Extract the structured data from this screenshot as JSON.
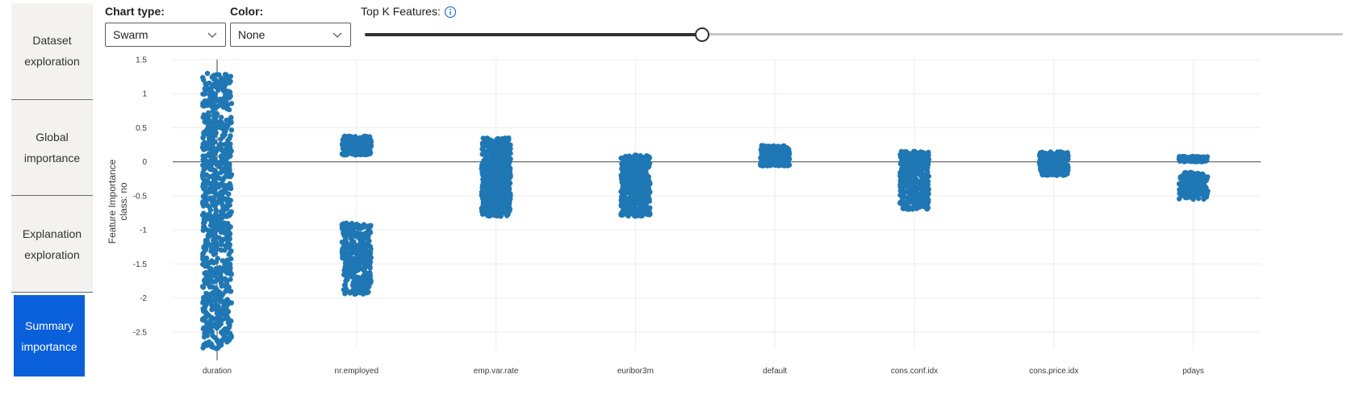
{
  "sidebar": {
    "items": [
      {
        "line1": "Dataset",
        "line2": "exploration",
        "active": false
      },
      {
        "line1": "Global",
        "line2": "importance",
        "active": false
      },
      {
        "line1": "Explanation",
        "line2": "exploration",
        "active": false
      },
      {
        "line1": "Summary",
        "line2": "importance",
        "active": true
      }
    ]
  },
  "controls": {
    "chart_type": {
      "label": "Chart type:",
      "value": "Swarm"
    },
    "color": {
      "label": "Color:",
      "value": "None"
    },
    "topk": {
      "label": "Top K Features:",
      "info_icon": "info-icon",
      "value_fraction": 0.345
    }
  },
  "colors": {
    "accent": "#0a5fdb",
    "points": "#1f77b4"
  },
  "chart_data": {
    "type": "scatter",
    "subtype": "swarm",
    "ylabel_line1": "Feature Importance",
    "ylabel_line2": "class:  no",
    "ylim": [
      -2.75,
      1.5
    ],
    "yticks": [
      "1.5",
      "1",
      "0.5",
      "0",
      "-0.5",
      "-1",
      "-1.5",
      "-2",
      "-2.5"
    ],
    "ytick_values": [
      1.5,
      1,
      0.5,
      0,
      -0.5,
      -1,
      -1.5,
      -2,
      -2.5
    ],
    "grid": true,
    "categories": [
      "duration",
      "nr.employed",
      "emp.var.rate",
      "euribor3m",
      "default",
      "cons.conf.idx",
      "cons.price.idx",
      "pdays"
    ],
    "series": [
      {
        "feature": "duration",
        "clusters": [
          {
            "min": -2.75,
            "max": 1.3,
            "n": 900
          }
        ]
      },
      {
        "feature": "nr.employed",
        "clusters": [
          {
            "min": 0.1,
            "max": 0.38,
            "n": 250
          },
          {
            "min": -1.95,
            "max": -0.9,
            "n": 350
          }
        ]
      },
      {
        "feature": "emp.var.rate",
        "clusters": [
          {
            "min": -0.8,
            "max": 0.35,
            "n": 600
          }
        ]
      },
      {
        "feature": "euribor3m",
        "clusters": [
          {
            "min": -0.8,
            "max": 0.1,
            "n": 450
          }
        ]
      },
      {
        "feature": "default",
        "clusters": [
          {
            "min": -0.06,
            "max": 0.24,
            "n": 220
          }
        ]
      },
      {
        "feature": "cons.conf.idx",
        "clusters": [
          {
            "min": -0.7,
            "max": 0.16,
            "n": 380
          }
        ]
      },
      {
        "feature": "cons.price.idx",
        "clusters": [
          {
            "min": -0.2,
            "max": 0.15,
            "n": 260
          }
        ]
      },
      {
        "feature": "pdays",
        "clusters": [
          {
            "min": 0.0,
            "max": 0.08,
            "n": 120
          },
          {
            "min": -0.55,
            "max": -0.15,
            "n": 160
          }
        ]
      }
    ]
  }
}
